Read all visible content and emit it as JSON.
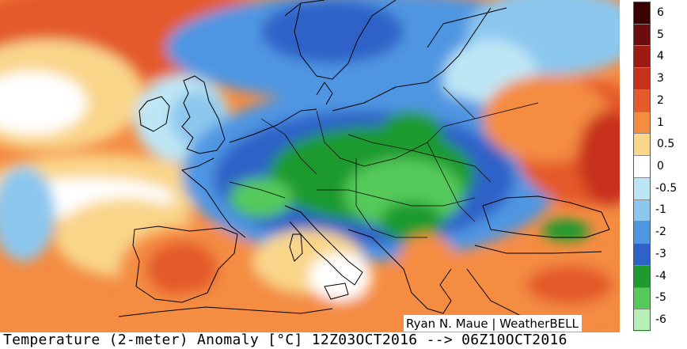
{
  "title": "Temperature (2-meter) Anomaly  [°C] 12Z03OCT2016 --> 06Z10OCT2016",
  "credit": "Ryan N. Maue | WeatherBELL",
  "colorbar": {
    "levels": [
      {
        "label": "6",
        "color": "#3a0000"
      },
      {
        "label": "5",
        "color": "#6b0d0d"
      },
      {
        "label": "4",
        "color": "#9e1a12"
      },
      {
        "label": "3",
        "color": "#c8321c"
      },
      {
        "label": "2",
        "color": "#e45a2a"
      },
      {
        "label": "1",
        "color": "#f48c42"
      },
      {
        "label": "0.5",
        "color": "#f9d68a"
      },
      {
        "label": "0",
        "color": "#ffffff"
      },
      {
        "label": "-0.5",
        "color": "#bde6f5"
      },
      {
        "label": "-1",
        "color": "#8cc7ee"
      },
      {
        "label": "-2",
        "color": "#4f96e2"
      },
      {
        "label": "-3",
        "color": "#2f62c8"
      },
      {
        "label": "-4",
        "color": "#1e9a2e"
      },
      {
        "label": "-5",
        "color": "#55c95a"
      },
      {
        "label": "-6",
        "color": "#b8efb6"
      }
    ]
  },
  "colors": {
    "warm_strong": "#e45a2a",
    "warm": "#f48c42",
    "warm_light": "#f9d68a",
    "neutral": "#ffffff",
    "cool_light": "#bde6f5",
    "cool": "#8cc7ee",
    "cold": "#4f96e2",
    "colder": "#2f62c8",
    "coldest_green": "#1e9a2e",
    "green_light": "#55c95a",
    "coast_line": "#000000"
  }
}
